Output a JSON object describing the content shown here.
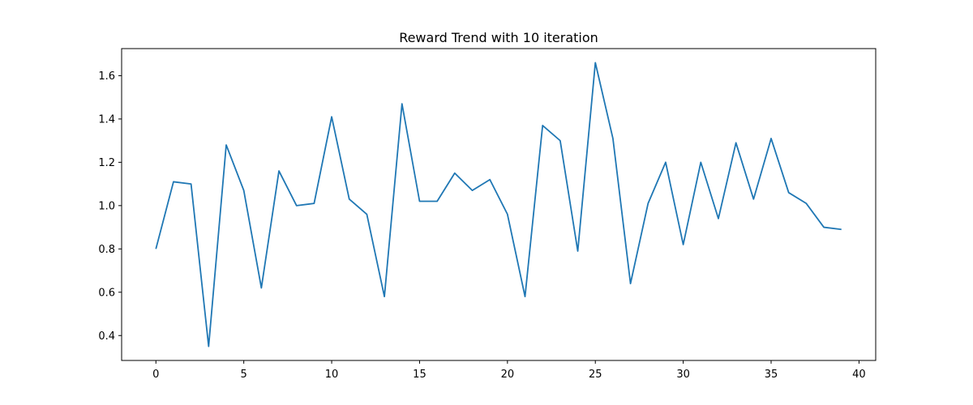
{
  "chart_data": {
    "type": "line",
    "title": "Reward Trend with 10 iteration",
    "xlabel": "",
    "ylabel": "",
    "xlim": [
      -1.95,
      40.95
    ],
    "ylim": [
      0.285,
      1.725
    ],
    "xticks": [
      0,
      5,
      10,
      15,
      20,
      25,
      30,
      35,
      40
    ],
    "yticks": [
      0.4,
      0.6,
      0.8,
      1.0,
      1.2,
      1.4,
      1.6
    ],
    "ytick_labels": [
      "0.4",
      "0.6",
      "0.8",
      "1.0",
      "1.2",
      "1.4",
      "1.6"
    ],
    "grid": false,
    "series": [
      {
        "color": "#1f77b4",
        "x": [
          0,
          1,
          2,
          3,
          4,
          5,
          6,
          7,
          8,
          9,
          10,
          11,
          12,
          13,
          14,
          15,
          16,
          17,
          18,
          19,
          20,
          21,
          22,
          23,
          24,
          25,
          26,
          27,
          28,
          29,
          30,
          31,
          32,
          33,
          34,
          35,
          36,
          37,
          38,
          39
        ],
        "values": [
          0.8,
          1.11,
          1.1,
          0.35,
          1.28,
          1.07,
          0.62,
          1.16,
          1.0,
          1.01,
          1.41,
          1.03,
          0.96,
          0.58,
          1.47,
          1.02,
          1.02,
          1.15,
          1.07,
          1.12,
          0.96,
          0.58,
          1.37,
          1.3,
          0.79,
          1.66,
          1.31,
          0.64,
          1.01,
          1.2,
          0.82,
          1.2,
          0.94,
          1.29,
          1.03,
          1.31,
          1.06,
          1.01,
          0.9,
          0.89
        ]
      }
    ]
  }
}
